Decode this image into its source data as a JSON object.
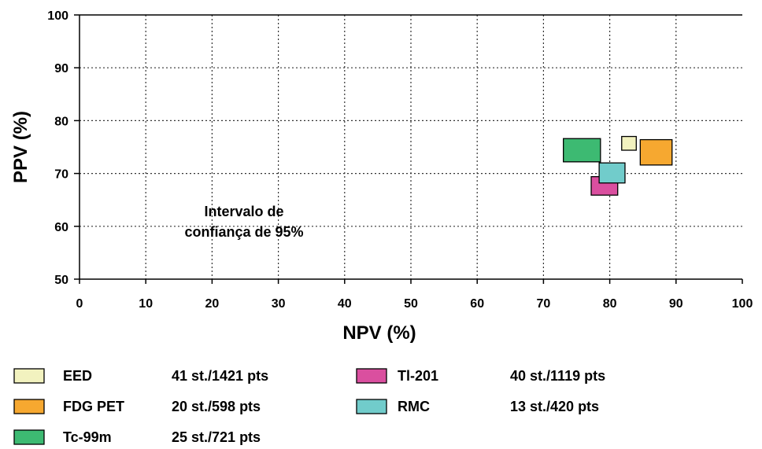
{
  "chart_data": {
    "type": "scatter",
    "xlabel": "NPV  (%)",
    "ylabel": "PPV  (%)",
    "xlim": [
      0,
      100
    ],
    "ylim": [
      50,
      100
    ],
    "x_ticks": [
      "0",
      "10",
      "20",
      "30",
      "40",
      "50",
      "60",
      "70",
      "80",
      "90",
      "100"
    ],
    "y_ticks": [
      "50",
      "60",
      "70",
      "80",
      "90",
      "100"
    ],
    "grid": true,
    "annotation": [
      "Intervalo de",
      "confiança de 95%"
    ],
    "series": [
      {
        "name": "EED",
        "detail": "41 st./1421 pts",
        "color": "#f2f2bf",
        "npv": [
          81.8,
          84.0
        ],
        "ppv": [
          74.4,
          77.0
        ]
      },
      {
        "name": "FDG PET",
        "detail": "20 st./598 pts",
        "color": "#f6a830",
        "npv": [
          84.6,
          89.4
        ],
        "ppv": [
          71.6,
          76.4
        ]
      },
      {
        "name": "Tc-99m",
        "detail": "25 st./721 pts",
        "color": "#3dba72",
        "npv": [
          73.0,
          78.6
        ],
        "ppv": [
          72.2,
          76.6
        ]
      },
      {
        "name": "Tl-201",
        "detail": "40 st./1119 pts",
        "color": "#da4f9f",
        "npv": [
          77.2,
          81.2
        ],
        "ppv": [
          65.9,
          69.4
        ]
      },
      {
        "name": "RMC",
        "detail": "13 st./420 pts",
        "color": "#71cccb",
        "npv": [
          78.4,
          82.3
        ],
        "ppv": [
          68.2,
          72.0
        ]
      }
    ]
  }
}
